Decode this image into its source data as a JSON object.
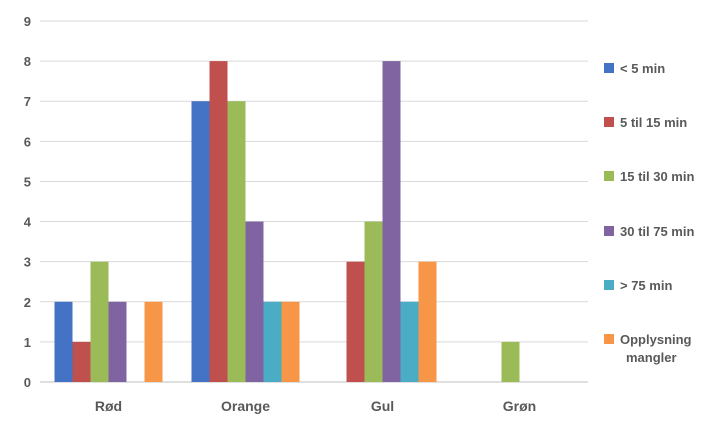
{
  "chart_data": {
    "type": "bar",
    "categories": [
      "Rød",
      "Orange",
      "Gul",
      "Grøn"
    ],
    "series": [
      {
        "name": "< 5 min",
        "color": "#4472C4",
        "values": [
          2,
          7,
          0,
          0
        ]
      },
      {
        "name": "5 til 15 min",
        "color": "#C0504D",
        "values": [
          1,
          8,
          3,
          0
        ]
      },
      {
        "name": "15 til 30 min",
        "color": "#9BBB59",
        "values": [
          3,
          7,
          4,
          1
        ]
      },
      {
        "name": "30 til 75 min",
        "color": "#8064A2",
        "values": [
          2,
          4,
          8,
          0
        ]
      },
      {
        "name": "> 75 min",
        "color": "#4BACC6",
        "values": [
          0,
          2,
          2,
          0
        ]
      },
      {
        "name": "Opplysning mangler",
        "color": "#F79646",
        "values": [
          2,
          2,
          3,
          0
        ]
      }
    ],
    "ylim": [
      0,
      9
    ],
    "yticks": [
      0,
      1,
      2,
      3,
      4,
      5,
      6,
      7,
      8,
      9
    ],
    "grid": true,
    "legend_position": "right",
    "title": "",
    "xlabel": "",
    "ylabel": ""
  }
}
